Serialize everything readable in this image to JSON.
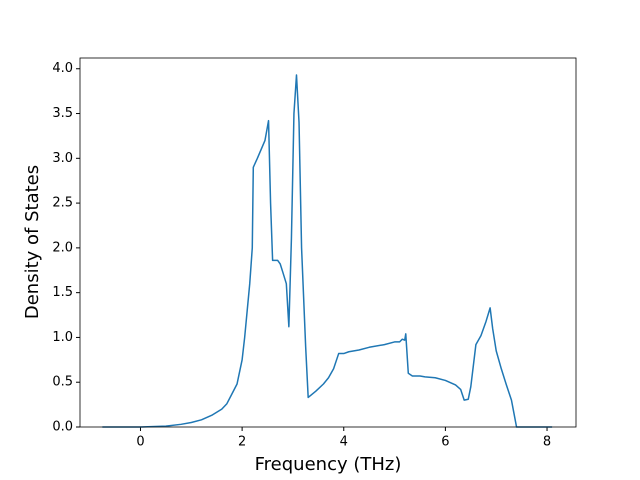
{
  "chart_data": {
    "type": "line",
    "xlabel": "Frequency (THz)",
    "ylabel": "Density of States",
    "x": [
      -0.75,
      0,
      0.5,
      0.8,
      1.0,
      1.2,
      1.4,
      1.6,
      1.7,
      1.8,
      1.9,
      2.0,
      2.05,
      2.1,
      2.15,
      2.2,
      2.22,
      2.3,
      2.45,
      2.52,
      2.56,
      2.6,
      2.7,
      2.75,
      2.8,
      2.87,
      2.92,
      2.97,
      3.02,
      3.07,
      3.12,
      3.17,
      3.25,
      3.3,
      3.45,
      3.6,
      3.7,
      3.8,
      3.9,
      4.0,
      4.1,
      4.3,
      4.5,
      4.8,
      5.0,
      5.1,
      5.15,
      5.2,
      5.22,
      5.27,
      5.35,
      5.5,
      5.6,
      5.8,
      6.0,
      6.2,
      6.3,
      6.37,
      6.45,
      6.5,
      6.6,
      6.7,
      6.8,
      6.88,
      6.93,
      7.0,
      7.1,
      7.2,
      7.3,
      7.35,
      7.4,
      7.6,
      8.1
    ],
    "values": [
      0,
      0,
      0.01,
      0.03,
      0.05,
      0.08,
      0.13,
      0.2,
      0.26,
      0.37,
      0.48,
      0.75,
      1.0,
      1.3,
      1.6,
      2.0,
      2.9,
      3.0,
      3.2,
      3.42,
      2.5,
      1.86,
      1.86,
      1.82,
      1.73,
      1.6,
      1.12,
      2.1,
      3.5,
      3.93,
      3.4,
      2.0,
      0.9,
      0.33,
      0.4,
      0.48,
      0.55,
      0.65,
      0.82,
      0.82,
      0.84,
      0.86,
      0.89,
      0.92,
      0.95,
      0.95,
      0.98,
      0.97,
      1.04,
      0.6,
      0.57,
      0.57,
      0.56,
      0.55,
      0.52,
      0.47,
      0.42,
      0.3,
      0.31,
      0.45,
      0.92,
      1.02,
      1.18,
      1.33,
      1.1,
      0.85,
      0.65,
      0.47,
      0.3,
      0.15,
      0,
      0,
      0
    ],
    "color": "#1f77b4",
    "xlim": [
      -1.19,
      8.57
    ],
    "ylim": [
      0,
      4.12
    ],
    "xticks": [
      0,
      2,
      4,
      6,
      8
    ],
    "yticks": [
      {
        "value": 0,
        "label": "0.0"
      },
      0.5,
      {
        "value": 1,
        "label": "1.0"
      },
      1.5,
      {
        "value": 2,
        "label": "2.0"
      },
      2.5,
      {
        "value": 3,
        "label": "3.0"
      },
      3.5,
      {
        "value": 4,
        "label": "4.0"
      }
    ]
  }
}
